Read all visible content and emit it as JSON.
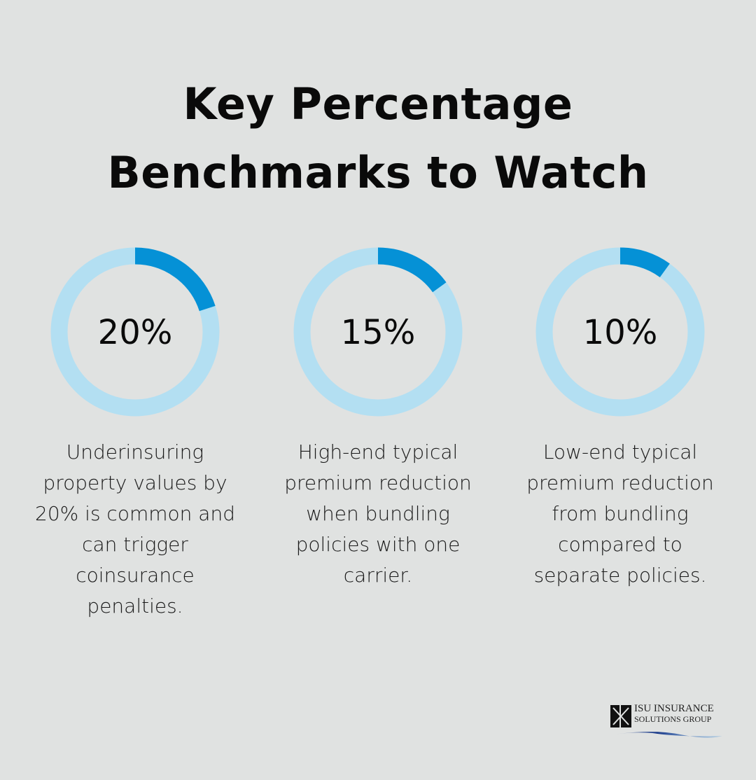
{
  "title": {
    "line1": "Key Percentage",
    "line2": "Benchmarks to Watch"
  },
  "colors": {
    "background": "#e0e2e1",
    "track": "#b3dff2",
    "fill": "#0591d6"
  },
  "chart_data": {
    "type": "pie",
    "subtype": "donut",
    "items": [
      {
        "value": 20,
        "label": "20%",
        "description": "Underinsuring property values by 20% is common and can trigger coinsurance penalties.",
        "lines": [
          "Underinsuring",
          "property values by",
          "20% is common and",
          "can trigger",
          "coinsurance",
          "penalties."
        ]
      },
      {
        "value": 15,
        "label": "15%",
        "description": "High-end typical premium reduction when bundling policies with one carrier.",
        "lines": [
          "High-end typical",
          "premium reduction",
          "when bundling",
          "policies with one",
          "carrier."
        ]
      },
      {
        "value": 10,
        "label": "10%",
        "description": "Low-end typical premium reduction from bundling compared to separate policies.",
        "lines": [
          "Low-end typical",
          "premium reduction",
          "from bundling",
          "compared to",
          "separate policies."
        ]
      }
    ]
  },
  "logo": {
    "line1": "ISU INSURANCE",
    "line2": "SOLUTIONS GROUP"
  }
}
